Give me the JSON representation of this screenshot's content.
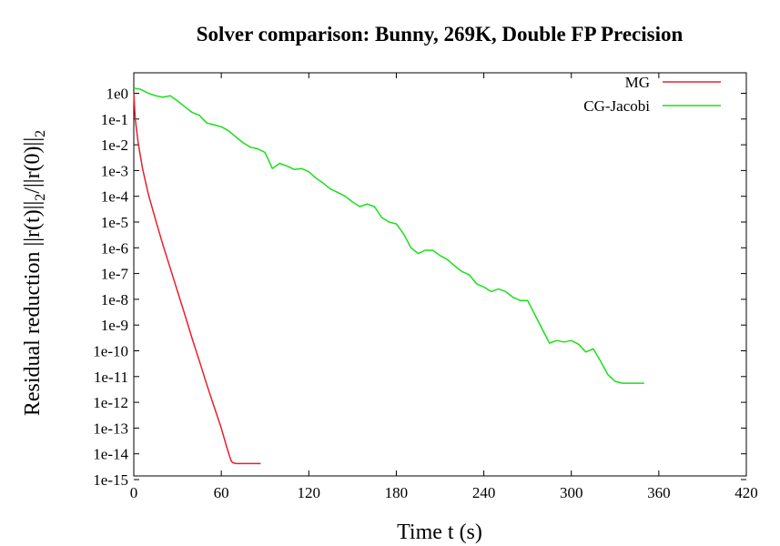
{
  "chart_data": {
    "type": "line",
    "title": "Solver comparison: Bunny, 269K, Double FP Precision",
    "xlabel": "Time t (s)",
    "ylabel": {
      "base": "Residual reduction ||r(t)||",
      "sub1": "2",
      "mid": "/||r(0)||",
      "sub2": "2"
    },
    "xlim": [
      0,
      420
    ],
    "ylim_log10": [
      -15,
      0.35
    ],
    "y_scale": "log",
    "grid": false,
    "legend_position": "top-right",
    "x_ticks": [
      0,
      60,
      120,
      180,
      240,
      300,
      360,
      420
    ],
    "x_tick_labels": [
      "0",
      "60",
      "120",
      "180",
      "240",
      "300",
      "360",
      "420"
    ],
    "y_ticks_log10": [
      0,
      -1,
      -2,
      -3,
      -4,
      -5,
      -6,
      -7,
      -8,
      -9,
      -10,
      -11,
      -12,
      -13,
      -14,
      -15
    ],
    "y_tick_labels": [
      "1e0",
      "1e-1",
      "1e-2",
      "1e-3",
      "1e-4",
      "1e-5",
      "1e-6",
      "1e-7",
      "1e-8",
      "1e-9",
      "1e-10",
      "1e-11",
      "1e-12",
      "1e-13",
      "1e-14",
      "1e-15"
    ],
    "series": [
      {
        "name": "MG",
        "color": "#e8202a",
        "x": [
          0,
          1,
          3,
          6,
          10,
          15,
          20,
          25,
          30,
          35,
          40,
          45,
          50,
          55,
          60,
          64,
          66,
          67,
          68,
          70,
          75,
          80,
          87
        ],
        "y": [
          1,
          0.1,
          0.012,
          0.0012,
          0.00012,
          1.2e-05,
          1.3e-06,
          1.6e-07,
          2e-08,
          2.5e-09,
          3e-10,
          4e-11,
          5e-12,
          7e-13,
          1e-13,
          1.6e-14,
          7e-15,
          5e-15,
          4.5e-15,
          4.2e-15,
          4.2e-15,
          4.2e-15,
          4.2e-15
        ]
      },
      {
        "name": "CG-Jacobi",
        "color": "#18e018",
        "x": [
          0,
          5,
          10,
          15,
          20,
          25,
          30,
          35,
          40,
          45,
          50,
          55,
          60,
          65,
          70,
          75,
          80,
          85,
          90,
          95,
          100,
          105,
          110,
          115,
          120,
          125,
          130,
          135,
          140,
          145,
          150,
          155,
          160,
          165,
          170,
          175,
          180,
          185,
          190,
          195,
          200,
          205,
          210,
          215,
          220,
          225,
          230,
          235,
          240,
          245,
          250,
          255,
          260,
          265,
          270,
          275,
          280,
          285,
          290,
          295,
          300,
          305,
          310,
          315,
          320,
          325,
          330,
          335,
          340,
          345,
          350
        ],
        "y": [
          1.6,
          1.4,
          1.0,
          0.8,
          0.7,
          0.8,
          0.5,
          0.3,
          0.18,
          0.14,
          0.07,
          0.06,
          0.05,
          0.035,
          0.02,
          0.012,
          0.008,
          0.007,
          0.005,
          0.0012,
          0.0019,
          0.0015,
          0.0011,
          0.0012,
          0.0009,
          0.0005,
          0.00032,
          0.00019,
          0.00014,
          0.0001,
          6e-05,
          4e-05,
          5e-05,
          4e-05,
          1.5e-05,
          1e-05,
          8.5e-06,
          3.5e-06,
          1e-06,
          6e-07,
          8e-07,
          8e-07,
          5e-07,
          3.5e-07,
          2e-07,
          1.2e-07,
          9e-08,
          4e-08,
          3e-08,
          2e-08,
          2.5e-08,
          2e-08,
          1.2e-08,
          9e-09,
          9e-09,
          2.5e-09,
          7e-10,
          2e-10,
          2.5e-10,
          2.2e-10,
          2.5e-10,
          1.8e-10,
          9e-11,
          1.2e-10,
          4e-11,
          1.2e-11,
          6.5e-12,
          5.5e-12,
          5.5e-12,
          5.5e-12,
          5.5e-12
        ]
      }
    ]
  }
}
